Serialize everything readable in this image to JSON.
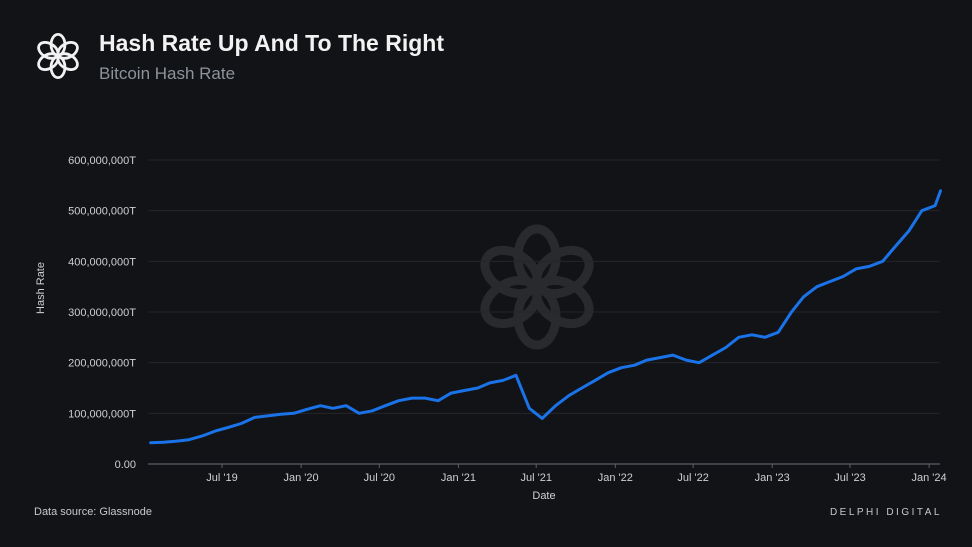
{
  "header": {
    "title": "Hash Rate Up And To The Right",
    "subtitle": "Bitcoin Hash Rate"
  },
  "footer": {
    "source": "Data source: Glassnode",
    "brand": "DELPHI DIGITAL"
  },
  "colors": {
    "background": "#121316",
    "series": "#1a73e8",
    "grid": "#2a2c31"
  },
  "icons": {
    "logo": "delphi-knot-logo",
    "watermark": "delphi-knot-watermark"
  },
  "chart_data": {
    "type": "line",
    "title": "Bitcoin Hash Rate",
    "xlabel": "Date",
    "ylabel": "Hash Rate",
    "ylim": [
      0,
      600000000
    ],
    "yticks": [
      0,
      100000000,
      200000000,
      300000000,
      400000000,
      500000000,
      600000000
    ],
    "ytick_labels": [
      "0.00",
      "100,000,000T",
      "200,000,000T",
      "300,000,000T",
      "400,000,000T",
      "500,000,000T",
      "600,000,000T"
    ],
    "xticks": [
      "2019-07-01",
      "2020-01-01",
      "2020-07-01",
      "2021-01-01",
      "2021-07-01",
      "2022-01-01",
      "2022-07-01",
      "2023-01-01",
      "2023-07-01",
      "2024-01-01"
    ],
    "xtick_labels": [
      "Jul '19",
      "Jan '20",
      "Jul '20",
      "Jan '21",
      "Jul '21",
      "Jan '22",
      "Jul '22",
      "Jan '23",
      "Jul '23",
      "Jan '24"
    ],
    "grid": true,
    "series": [
      {
        "x": [
          "2019-01-15",
          "2019-02-15",
          "2019-03-15",
          "2019-04-15",
          "2019-05-15",
          "2019-06-15",
          "2019-07-15",
          "2019-08-15",
          "2019-09-15",
          "2019-10-15",
          "2019-11-15",
          "2019-12-15",
          "2020-01-15",
          "2020-02-15",
          "2020-03-15",
          "2020-04-15",
          "2020-05-15",
          "2020-06-15",
          "2020-07-15",
          "2020-08-15",
          "2020-09-15",
          "2020-10-15",
          "2020-11-15",
          "2020-12-15",
          "2021-01-15",
          "2021-02-15",
          "2021-03-15",
          "2021-04-15",
          "2021-05-15",
          "2021-06-15",
          "2021-07-15",
          "2021-08-15",
          "2021-09-15",
          "2021-10-15",
          "2021-11-15",
          "2021-12-15",
          "2022-01-15",
          "2022-02-15",
          "2022-03-15",
          "2022-04-15",
          "2022-05-15",
          "2022-06-15",
          "2022-07-15",
          "2022-08-15",
          "2022-09-15",
          "2022-10-15",
          "2022-11-15",
          "2022-12-15",
          "2023-01-15",
          "2023-02-15",
          "2023-03-15",
          "2023-04-15",
          "2023-05-15",
          "2023-06-15",
          "2023-07-15",
          "2023-08-15",
          "2023-09-15",
          "2023-10-15",
          "2023-11-15",
          "2023-12-15",
          "2024-01-15",
          "2024-01-28"
        ],
        "values": [
          42000000,
          43000000,
          45000000,
          48000000,
          55000000,
          65000000,
          72000000,
          80000000,
          92000000,
          95000000,
          98000000,
          100000000,
          108000000,
          115000000,
          110000000,
          115000000,
          100000000,
          105000000,
          115000000,
          125000000,
          130000000,
          130000000,
          125000000,
          140000000,
          145000000,
          150000000,
          160000000,
          165000000,
          175000000,
          110000000,
          90000000,
          115000000,
          135000000,
          150000000,
          165000000,
          180000000,
          190000000,
          195000000,
          205000000,
          210000000,
          215000000,
          205000000,
          200000000,
          215000000,
          230000000,
          250000000,
          255000000,
          250000000,
          260000000,
          300000000,
          330000000,
          350000000,
          360000000,
          370000000,
          385000000,
          390000000,
          400000000,
          430000000,
          460000000,
          500000000,
          510000000,
          540000000
        ]
      }
    ]
  }
}
